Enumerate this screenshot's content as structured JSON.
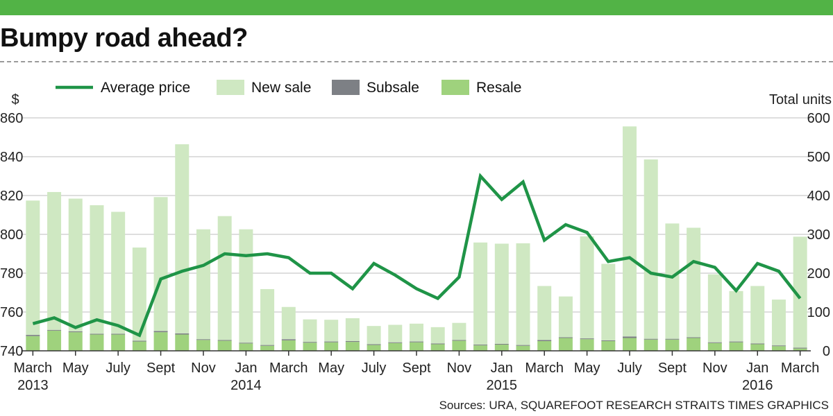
{
  "header": {
    "title": "Bumpy road ahead?"
  },
  "source_text": "Sources: URA, SQUAREFOOT RESEARCH   STRAITS TIMES GRAPHICS",
  "colors": {
    "topbar": "#52b346",
    "line": "#1f9447",
    "new_sale": "#cfe8c2",
    "subsale": "#7d8085",
    "resale": "#9fd27d",
    "grid": "#bdbdbd",
    "axis": "#333333"
  },
  "chart_data": {
    "type": "bar",
    "title": "Bumpy road ahead?",
    "ylabel": "$",
    "y2label": "Total units",
    "ylim": [
      740,
      860
    ],
    "y2lim": [
      0,
      600
    ],
    "yticks": [
      740,
      760,
      780,
      800,
      820,
      840,
      860
    ],
    "y2ticks": [
      0,
      100,
      200,
      300,
      400,
      500,
      600
    ],
    "legend_position": "top",
    "grid": true,
    "legend": [
      "Average price",
      "New sale",
      "Subsale",
      "Resale"
    ],
    "categories": [
      "Mar 2013",
      "Apr 2013",
      "May 2013",
      "Jun 2013",
      "Jul 2013",
      "Aug 2013",
      "Sep 2013",
      "Oct 2013",
      "Nov 2013",
      "Dec 2013",
      "Jan 2014",
      "Feb 2014",
      "Mar 2014",
      "Apr 2014",
      "May 2014",
      "Jun 2014",
      "Jul 2014",
      "Aug 2014",
      "Sep 2014",
      "Oct 2014",
      "Nov 2014",
      "Dec 2014",
      "Jan 2015",
      "Feb 2015",
      "Mar 2015",
      "Apr 2015",
      "May 2015",
      "Jun 2015",
      "Jul 2015",
      "Aug 2015",
      "Sep 2015",
      "Oct 2015",
      "Nov 2015",
      "Dec 2015",
      "Jan 2016",
      "Feb 2016",
      "Mar 2016"
    ],
    "x_labels": [
      {
        "index": 0,
        "month": "March",
        "year": "2013"
      },
      {
        "index": 2,
        "month": "May",
        "year": ""
      },
      {
        "index": 4,
        "month": "July",
        "year": ""
      },
      {
        "index": 6,
        "month": "Sept",
        "year": ""
      },
      {
        "index": 8,
        "month": "Nov",
        "year": ""
      },
      {
        "index": 10,
        "month": "Jan",
        "year": "2014"
      },
      {
        "index": 12,
        "month": "March",
        "year": ""
      },
      {
        "index": 14,
        "month": "May",
        "year": ""
      },
      {
        "index": 16,
        "month": "July",
        "year": ""
      },
      {
        "index": 18,
        "month": "Sept",
        "year": ""
      },
      {
        "index": 20,
        "month": "Nov",
        "year": ""
      },
      {
        "index": 22,
        "month": "Jan",
        "year": "2015"
      },
      {
        "index": 24,
        "month": "March",
        "year": ""
      },
      {
        "index": 26,
        "month": "May",
        "year": ""
      },
      {
        "index": 28,
        "month": "July",
        "year": ""
      },
      {
        "index": 30,
        "month": "Sept",
        "year": ""
      },
      {
        "index": 32,
        "month": "Nov",
        "year": ""
      },
      {
        "index": 34,
        "month": "Jan",
        "year": "2016"
      },
      {
        "index": 36,
        "month": "March",
        "year": ""
      }
    ],
    "series": [
      {
        "name": "Average price",
        "type": "line",
        "axis": "left",
        "values": [
          754,
          757,
          752,
          756,
          753,
          748,
          777,
          781,
          784,
          790,
          789,
          790,
          788,
          780,
          780,
          772,
          785,
          779,
          772,
          767,
          778,
          830,
          818,
          827,
          797,
          805,
          801,
          786,
          788,
          780,
          778,
          786,
          783,
          771,
          785,
          781,
          767
        ]
      },
      {
        "name": "New sale",
        "type": "bar",
        "axis": "right",
        "values": [
          346,
          355,
          342,
          331,
          314,
          240,
          345,
          487,
          283,
          319,
          292,
          144,
          83,
          58,
          56,
          59,
          47,
          45,
          46,
          42,
          44,
          263,
          258,
          262,
          139,
          105,
          263,
          197,
          541,
          462,
          297,
          282,
          175,
          130,
          148,
          118,
          286
        ]
      },
      {
        "name": "Subsale",
        "type": "bar",
        "axis": "right",
        "values": [
          3,
          2,
          2,
          2,
          2,
          2,
          3,
          3,
          2,
          2,
          2,
          2,
          3,
          2,
          2,
          2,
          2,
          2,
          2,
          2,
          2,
          2,
          2,
          2,
          3,
          2,
          2,
          2,
          4,
          2,
          2,
          2,
          2,
          2,
          2,
          2,
          2
        ]
      },
      {
        "name": "Resale",
        "type": "bar",
        "axis": "right",
        "values": [
          38,
          52,
          48,
          42,
          42,
          24,
          48,
          42,
          28,
          26,
          19,
          13,
          27,
          21,
          22,
          23,
          15,
          20,
          22,
          17,
          26,
          14,
          16,
          13,
          25,
          33,
          30,
          25,
          33,
          29,
          29,
          33,
          20,
          22,
          17,
          12,
          6
        ]
      }
    ]
  }
}
